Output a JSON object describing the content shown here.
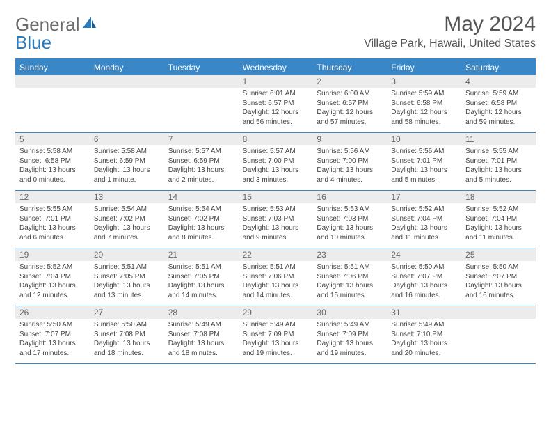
{
  "logo": {
    "text1": "General",
    "text2": "Blue"
  },
  "title": "May 2024",
  "location": "Village Park, Hawaii, United States",
  "colors": {
    "accent": "#3a87c7",
    "header_bg": "#3a87c7",
    "daynum_bg": "#ececec",
    "text": "#444444",
    "title_color": "#555555",
    "logo_gray": "#6b6b6b",
    "logo_blue": "#2b7bbf"
  },
  "day_names": [
    "Sunday",
    "Monday",
    "Tuesday",
    "Wednesday",
    "Thursday",
    "Friday",
    "Saturday"
  ],
  "weeks": [
    [
      null,
      null,
      null,
      {
        "n": "1",
        "sr": "6:01 AM",
        "ss": "6:57 PM",
        "dl": "12 hours and 56 minutes."
      },
      {
        "n": "2",
        "sr": "6:00 AM",
        "ss": "6:57 PM",
        "dl": "12 hours and 57 minutes."
      },
      {
        "n": "3",
        "sr": "5:59 AM",
        "ss": "6:58 PM",
        "dl": "12 hours and 58 minutes."
      },
      {
        "n": "4",
        "sr": "5:59 AM",
        "ss": "6:58 PM",
        "dl": "12 hours and 59 minutes."
      }
    ],
    [
      {
        "n": "5",
        "sr": "5:58 AM",
        "ss": "6:58 PM",
        "dl": "13 hours and 0 minutes."
      },
      {
        "n": "6",
        "sr": "5:58 AM",
        "ss": "6:59 PM",
        "dl": "13 hours and 1 minute."
      },
      {
        "n": "7",
        "sr": "5:57 AM",
        "ss": "6:59 PM",
        "dl": "13 hours and 2 minutes."
      },
      {
        "n": "8",
        "sr": "5:57 AM",
        "ss": "7:00 PM",
        "dl": "13 hours and 3 minutes."
      },
      {
        "n": "9",
        "sr": "5:56 AM",
        "ss": "7:00 PM",
        "dl": "13 hours and 4 minutes."
      },
      {
        "n": "10",
        "sr": "5:56 AM",
        "ss": "7:01 PM",
        "dl": "13 hours and 5 minutes."
      },
      {
        "n": "11",
        "sr": "5:55 AM",
        "ss": "7:01 PM",
        "dl": "13 hours and 5 minutes."
      }
    ],
    [
      {
        "n": "12",
        "sr": "5:55 AM",
        "ss": "7:01 PM",
        "dl": "13 hours and 6 minutes."
      },
      {
        "n": "13",
        "sr": "5:54 AM",
        "ss": "7:02 PM",
        "dl": "13 hours and 7 minutes."
      },
      {
        "n": "14",
        "sr": "5:54 AM",
        "ss": "7:02 PM",
        "dl": "13 hours and 8 minutes."
      },
      {
        "n": "15",
        "sr": "5:53 AM",
        "ss": "7:03 PM",
        "dl": "13 hours and 9 minutes."
      },
      {
        "n": "16",
        "sr": "5:53 AM",
        "ss": "7:03 PM",
        "dl": "13 hours and 10 minutes."
      },
      {
        "n": "17",
        "sr": "5:52 AM",
        "ss": "7:04 PM",
        "dl": "13 hours and 11 minutes."
      },
      {
        "n": "18",
        "sr": "5:52 AM",
        "ss": "7:04 PM",
        "dl": "13 hours and 11 minutes."
      }
    ],
    [
      {
        "n": "19",
        "sr": "5:52 AM",
        "ss": "7:04 PM",
        "dl": "13 hours and 12 minutes."
      },
      {
        "n": "20",
        "sr": "5:51 AM",
        "ss": "7:05 PM",
        "dl": "13 hours and 13 minutes."
      },
      {
        "n": "21",
        "sr": "5:51 AM",
        "ss": "7:05 PM",
        "dl": "13 hours and 14 minutes."
      },
      {
        "n": "22",
        "sr": "5:51 AM",
        "ss": "7:06 PM",
        "dl": "13 hours and 14 minutes."
      },
      {
        "n": "23",
        "sr": "5:51 AM",
        "ss": "7:06 PM",
        "dl": "13 hours and 15 minutes."
      },
      {
        "n": "24",
        "sr": "5:50 AM",
        "ss": "7:07 PM",
        "dl": "13 hours and 16 minutes."
      },
      {
        "n": "25",
        "sr": "5:50 AM",
        "ss": "7:07 PM",
        "dl": "13 hours and 16 minutes."
      }
    ],
    [
      {
        "n": "26",
        "sr": "5:50 AM",
        "ss": "7:07 PM",
        "dl": "13 hours and 17 minutes."
      },
      {
        "n": "27",
        "sr": "5:50 AM",
        "ss": "7:08 PM",
        "dl": "13 hours and 18 minutes."
      },
      {
        "n": "28",
        "sr": "5:49 AM",
        "ss": "7:08 PM",
        "dl": "13 hours and 18 minutes."
      },
      {
        "n": "29",
        "sr": "5:49 AM",
        "ss": "7:09 PM",
        "dl": "13 hours and 19 minutes."
      },
      {
        "n": "30",
        "sr": "5:49 AM",
        "ss": "7:09 PM",
        "dl": "13 hours and 19 minutes."
      },
      {
        "n": "31",
        "sr": "5:49 AM",
        "ss": "7:10 PM",
        "dl": "13 hours and 20 minutes."
      },
      null
    ]
  ],
  "labels": {
    "sunrise": "Sunrise:",
    "sunset": "Sunset:",
    "daylight": "Daylight:"
  }
}
